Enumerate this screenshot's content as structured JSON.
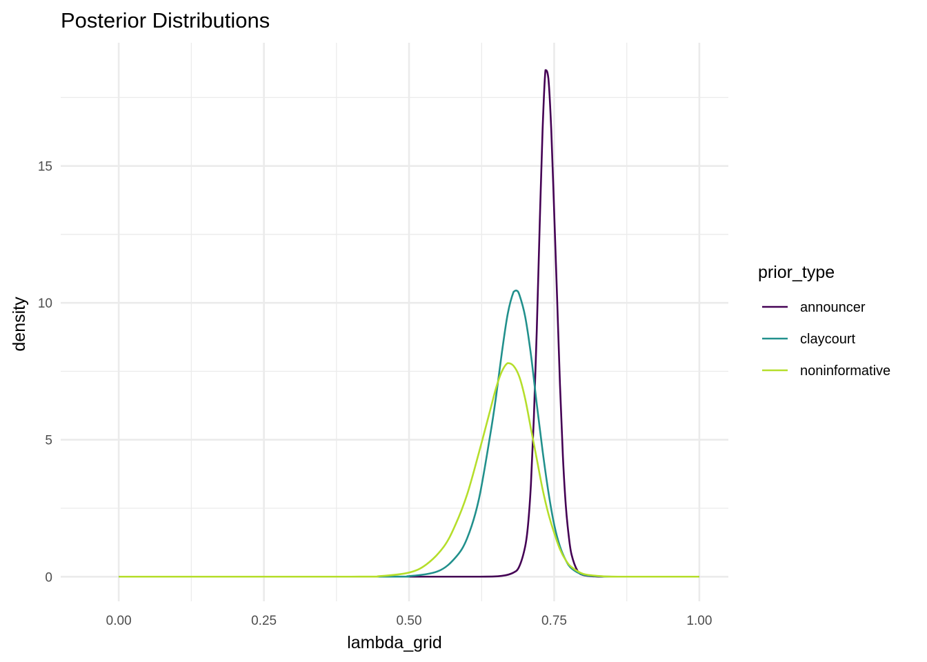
{
  "chart_data": {
    "type": "line",
    "title": "Posterior Distributions",
    "xlabel": "lambda_grid",
    "ylabel": "density",
    "xlim": [
      -0.1,
      1.05
    ],
    "ylim": [
      -0.9,
      19.5
    ],
    "x_ticks": [
      0.0,
      0.25,
      0.5,
      0.75,
      1.0
    ],
    "x_tick_labels": [
      "0.00",
      "0.25",
      "0.50",
      "0.75",
      "1.00"
    ],
    "x_minor_ticks": [
      0.125,
      0.375,
      0.625,
      0.875
    ],
    "y_ticks": [
      0,
      5,
      10,
      15
    ],
    "y_tick_labels": [
      "0",
      "5",
      "10",
      "15"
    ],
    "y_minor_ticks": [
      2.5,
      7.5,
      12.5,
      17.5
    ],
    "grid": true,
    "legend": {
      "title": "prior_type",
      "position": "right"
    },
    "series": [
      {
        "name": "announcer",
        "color": "#440154",
        "x": [
          0.0,
          0.5,
          0.62,
          0.66,
          0.68,
          0.69,
          0.7,
          0.705,
          0.71,
          0.715,
          0.72,
          0.725,
          0.73,
          0.735,
          0.74,
          0.745,
          0.75,
          0.755,
          0.76,
          0.765,
          0.77,
          0.775,
          0.78,
          0.79,
          0.8,
          0.82,
          0.85,
          1.0
        ],
        "y": [
          0,
          0,
          0,
          0.03,
          0.15,
          0.38,
          1.1,
          1.9,
          3.4,
          5.8,
          9.0,
          12.8,
          16.3,
          18.5,
          18.2,
          16.3,
          13.3,
          10.2,
          7.0,
          4.4,
          2.6,
          1.5,
          0.8,
          0.22,
          0.06,
          0.01,
          0,
          0
        ]
      },
      {
        "name": "claycourt",
        "color": "#21908C",
        "x": [
          0.0,
          0.45,
          0.5,
          0.55,
          0.58,
          0.6,
          0.62,
          0.64,
          0.65,
          0.66,
          0.67,
          0.68,
          0.685,
          0.69,
          0.7,
          0.71,
          0.72,
          0.73,
          0.74,
          0.75,
          0.76,
          0.77,
          0.78,
          0.8,
          0.83,
          0.86,
          1.0
        ],
        "y": [
          0,
          0,
          0.02,
          0.2,
          0.7,
          1.4,
          2.8,
          5.2,
          6.6,
          8.2,
          9.6,
          10.4,
          10.45,
          10.3,
          9.5,
          8.1,
          6.3,
          4.6,
          3.1,
          1.9,
          1.1,
          0.6,
          0.3,
          0.07,
          0.01,
          0,
          0
        ]
      },
      {
        "name": "noninformative",
        "color": "#B5DE2B",
        "x": [
          0.0,
          0.4,
          0.45,
          0.5,
          0.53,
          0.56,
          0.58,
          0.6,
          0.62,
          0.64,
          0.65,
          0.66,
          0.67,
          0.68,
          0.69,
          0.7,
          0.71,
          0.72,
          0.73,
          0.74,
          0.75,
          0.76,
          0.77,
          0.78,
          0.8,
          0.83,
          0.86,
          1.0
        ],
        "y": [
          0,
          0,
          0.02,
          0.15,
          0.45,
          1.1,
          1.9,
          3.0,
          4.5,
          6.1,
          6.9,
          7.5,
          7.8,
          7.7,
          7.3,
          6.5,
          5.4,
          4.3,
          3.2,
          2.3,
          1.6,
          1.0,
          0.6,
          0.35,
          0.1,
          0.02,
          0,
          0
        ]
      }
    ]
  }
}
